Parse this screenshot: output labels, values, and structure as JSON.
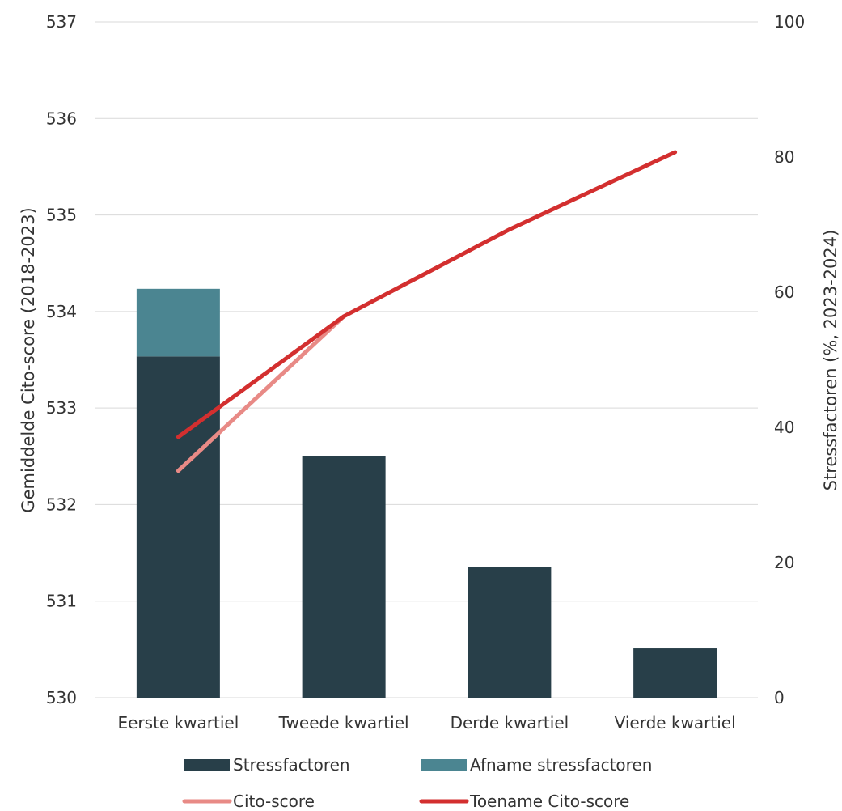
{
  "chart_data": {
    "type": "bar",
    "categories": [
      "Eerste kwartiel",
      "Tweede kwartiel",
      "Derde kwartiel",
      "Vierde kwartiel"
    ],
    "y_left": {
      "label": "Gemiddelde Cito-score (2018-2023)",
      "range": [
        530,
        537
      ],
      "ticks": [
        530,
        531,
        532,
        533,
        534,
        535,
        536,
        537
      ]
    },
    "y_right": {
      "label": "Stressfactoren (%, 2023-2024)",
      "range": [
        0,
        100
      ],
      "ticks": [
        0,
        20,
        40,
        60,
        80,
        100
      ]
    },
    "grid": true,
    "legend_position": "bottom",
    "bar_series": [
      {
        "name": "Stressfactoren",
        "axis": "right",
        "color": "#283f49",
        "values": [
          50.5,
          35.8,
          19.3,
          7.3
        ]
      },
      {
        "name": "Afname stressfactoren",
        "axis": "right",
        "color": "#4b8591",
        "values": [
          10.0,
          0,
          0,
          0
        ]
      }
    ],
    "line_series": [
      {
        "name": "Cito-score",
        "axis": "left",
        "color": "#e88a86",
        "values": [
          532.35,
          533.95,
          null,
          null
        ]
      },
      {
        "name": "Toename Cito-score",
        "axis": "left",
        "color": "#d32f2f",
        "values": [
          532.7,
          533.95,
          534.85,
          535.65
        ]
      }
    ]
  }
}
